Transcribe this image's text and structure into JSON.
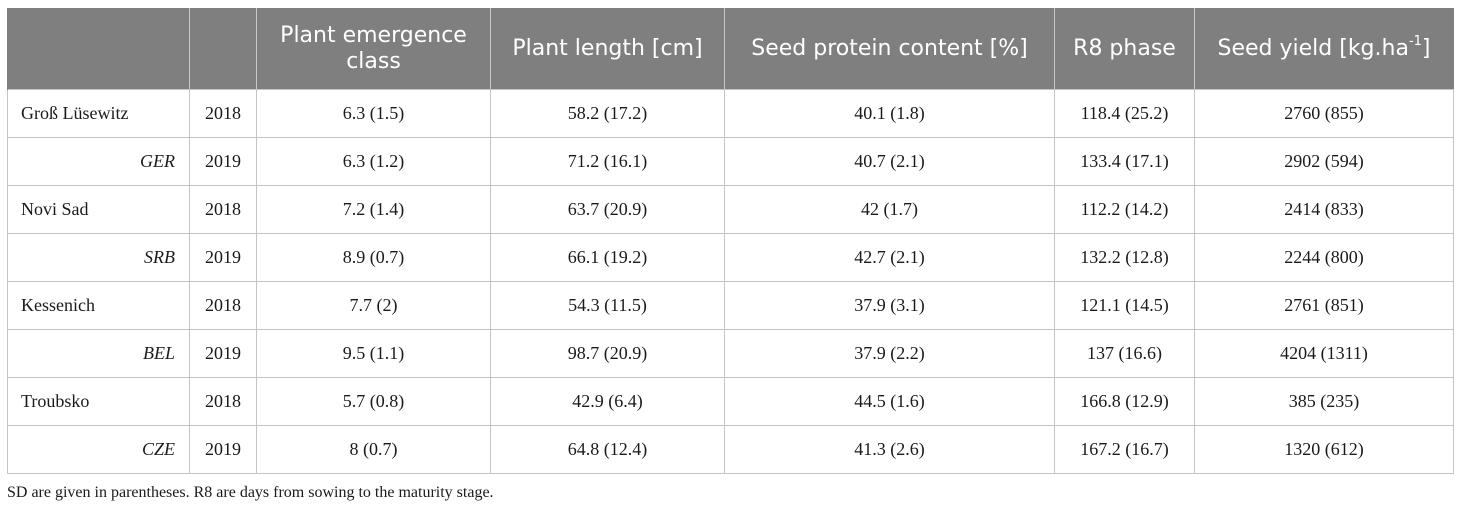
{
  "header": {
    "col_location": "",
    "col_year": "",
    "plant_emergence": "Plant emergence class",
    "plant_length": "Plant length [cm]",
    "seed_protein": "Seed protein content [%]",
    "r8_phase": "R8 phase",
    "seed_yield_prefix": "Seed yield [kg.ha",
    "seed_yield_sup": "-1",
    "seed_yield_suffix": "]"
  },
  "rows": [
    {
      "location": "Groß Lüsewitz",
      "year": "2018",
      "plant_emergence": "6.3 (1.5)",
      "plant_length": "58.2 (17.2)",
      "seed_protein": "40.1 (1.8)",
      "r8_phase": "118.4 (25.2)",
      "seed_yield": "2760 (855)"
    },
    {
      "location": "GER",
      "year": "2019",
      "plant_emergence": "6.3 (1.2)",
      "plant_length": "71.2 (16.1)",
      "seed_protein": "40.7 (2.1)",
      "r8_phase": "133.4 (17.1)",
      "seed_yield": "2902 (594)"
    },
    {
      "location": "Novi Sad",
      "year": "2018",
      "plant_emergence": "7.2 (1.4)",
      "plant_length": "63.7 (20.9)",
      "seed_protein": "42 (1.7)",
      "r8_phase": "112.2 (14.2)",
      "seed_yield": "2414 (833)"
    },
    {
      "location": "SRB",
      "year": "2019",
      "plant_emergence": "8.9 (0.7)",
      "plant_length": "66.1 (19.2)",
      "seed_protein": "42.7 (2.1)",
      "r8_phase": "132.2 (12.8)",
      "seed_yield": "2244 (800)"
    },
    {
      "location": "Kessenich",
      "year": "2018",
      "plant_emergence": "7.7 (2)",
      "plant_length": "54.3 (11.5)",
      "seed_protein": "37.9 (3.1)",
      "r8_phase": "121.1 (14.5)",
      "seed_yield": "2761 (851)"
    },
    {
      "location": "BEL",
      "year": "2019",
      "plant_emergence": "9.5 (1.1)",
      "plant_length": "98.7 (20.9)",
      "seed_protein": "37.9 (2.2)",
      "r8_phase": "137 (16.6)",
      "seed_yield": "4204 (1311)"
    },
    {
      "location": "Troubsko",
      "year": "2018",
      "plant_emergence": "5.7 (0.8)",
      "plant_length": "42.9 (6.4)",
      "seed_protein": "44.5 (1.6)",
      "r8_phase": "166.8 (12.9)",
      "seed_yield": "385 (235)"
    },
    {
      "location": "CZE",
      "year": "2019",
      "plant_emergence": "8 (0.7)",
      "plant_length": "64.8 (12.4)",
      "seed_protein": "41.3 (2.6)",
      "r8_phase": "167.2 (16.7)",
      "seed_yield": "1320 (612)"
    }
  ],
  "footnote": "SD are given in parentheses. R8 are days from sowing to the maturity stage.",
  "colors": {
    "header_bg": "#7f7f7f",
    "header_text": "#ffffff",
    "grid": "#c4c4c4"
  }
}
